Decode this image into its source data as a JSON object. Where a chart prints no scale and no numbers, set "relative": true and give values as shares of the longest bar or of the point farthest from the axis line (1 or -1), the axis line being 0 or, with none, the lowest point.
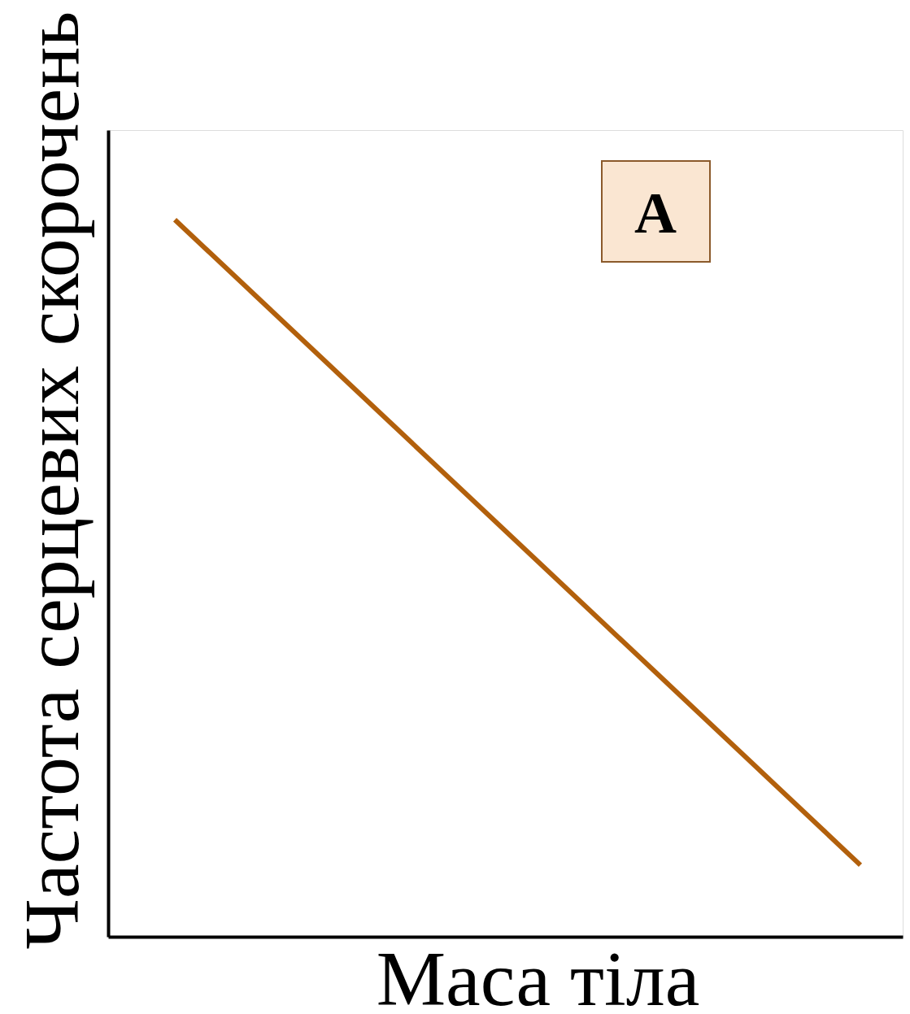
{
  "chart_data": {
    "type": "line",
    "relative": true,
    "xlabel": "Маса тіла",
    "ylabel": "Частота серцевих скорочень",
    "categories": [
      null,
      null
    ],
    "series": [
      {
        "color": "#b2600c",
        "values": [
          1,
          0.1
        ]
      }
    ],
    "annotations": [
      "A"
    ],
    "tick_labels": false,
    "grid": false,
    "legend": false,
    "marker": "none",
    "line_style": "solid"
  }
}
